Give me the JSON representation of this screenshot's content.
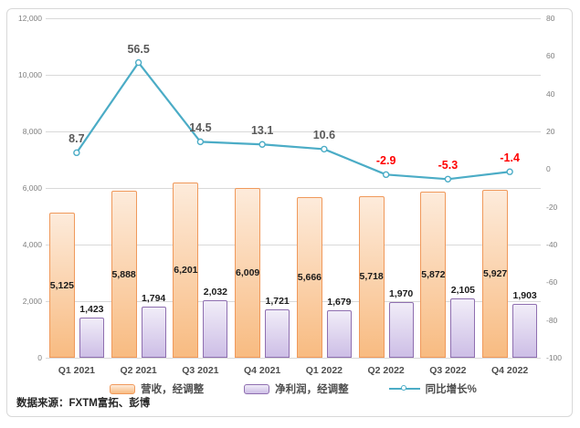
{
  "chart_data": {
    "type": "bar",
    "subtype": "combo-bar-line-dual-axis",
    "categories": [
      "Q1 2021",
      "Q2 2021",
      "Q3 2021",
      "Q4 2021",
      "Q1 2022",
      "Q2 2022",
      "Q3 2022",
      "Q4 2022"
    ],
    "series": [
      {
        "name": "营收，经调整",
        "type": "bar",
        "axis": "left",
        "values": [
          5125,
          5888,
          6201,
          6009,
          5666,
          5718,
          5872,
          5927
        ],
        "labels": [
          "5,125",
          "5,888",
          "6,201",
          "6,009",
          "5,666",
          "5,718",
          "5,872",
          "5,927"
        ],
        "label_position": "inside-center",
        "fill_top": "#FDEBDB",
        "fill_bottom": "#F8BB81",
        "border": "#F0995B"
      },
      {
        "name": "净利润，经调整",
        "type": "bar",
        "axis": "left",
        "values": [
          1423,
          1794,
          2032,
          1721,
          1679,
          1970,
          2105,
          1903
        ],
        "labels": [
          "1,423",
          "1,794",
          "2,032",
          "1,721",
          "1,679",
          "1,970",
          "2,105",
          "1,903"
        ],
        "label_position": "outside-top",
        "fill_top": "#F1EDF8",
        "fill_bottom": "#CDBEE6",
        "border": "#8F6FB0"
      },
      {
        "name": "同比增长%",
        "type": "line",
        "axis": "right",
        "values": [
          8.7,
          56.5,
          14.5,
          13.1,
          10.6,
          -2.9,
          -5.3,
          -1.4
        ],
        "labels": [
          "8.7",
          "56.5",
          "14.5",
          "13.1",
          "10.6",
          "-2.9",
          "-5.3",
          "-1.4"
        ],
        "color": "#4BACC6",
        "marker": "circle-open",
        "positive_label_color": "#595959",
        "negative_label_color": "#FF0000"
      }
    ],
    "left_axis": {
      "min": 0,
      "max": 12000,
      "ticks": [
        "0",
        "2,000",
        "4,000",
        "6,000",
        "8,000",
        "10,000",
        "12,000"
      ]
    },
    "right_axis": {
      "min": -100,
      "max": 80,
      "ticks": [
        "80",
        "60",
        "40",
        "20",
        "0",
        "-20",
        "-40",
        "-60",
        "-80",
        "-100"
      ]
    },
    "grid": true,
    "legend_position": "bottom",
    "title": "",
    "xlabel": "",
    "ylabel": ""
  },
  "colors": {
    "grid": "#D9D9D9",
    "axis_tick_text": "#808080",
    "x_tick_text": "#4D4D4D",
    "bar_value_text": "#1A1A1A",
    "frame_border": "#D8D8D8",
    "background": "#FFFFFF"
  },
  "source": {
    "text": "数据来源：FXTM富拓、彭博"
  }
}
